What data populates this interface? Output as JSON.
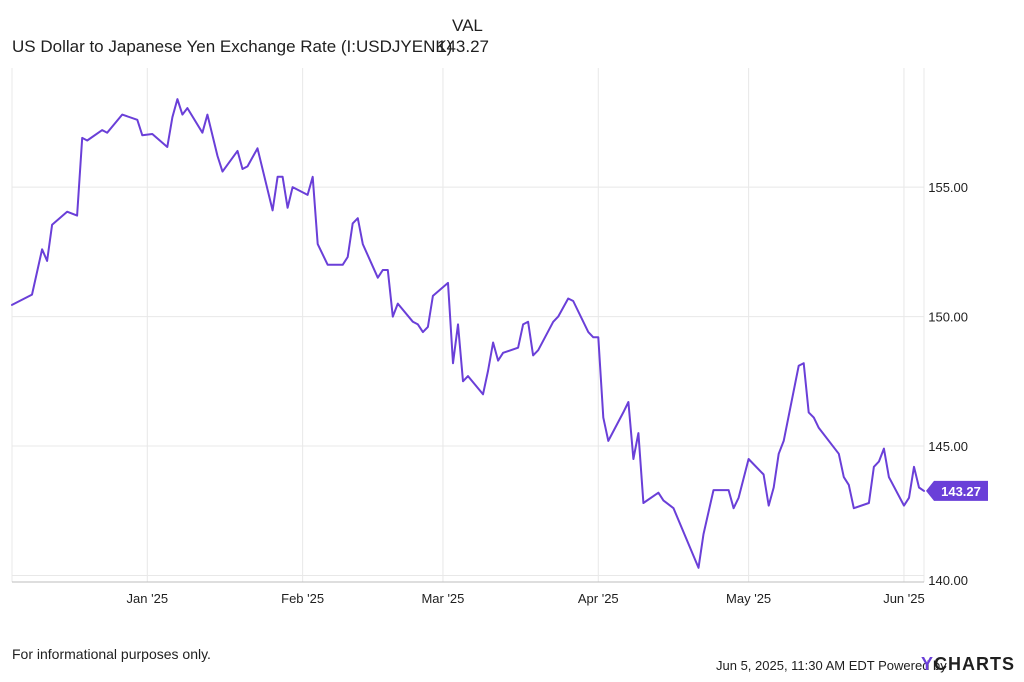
{
  "legend": {
    "column_header": "VAL",
    "series_name": "US Dollar to Japanese Yen Exchange Rate (I:USDJYENK)",
    "series_value": "143.27"
  },
  "footer": {
    "disclaimer": "For informational purposes only.",
    "timestamp": "Jun 5, 2025, 11:30 AM EDT Powered by",
    "brand_y": "Y",
    "brand_rest": "CHARTS"
  },
  "colors": {
    "line": "#6a3fd8",
    "grid": "#e8e8e8",
    "axis": "#bdbdbd",
    "text": "#1f1f1f"
  },
  "chart_data": {
    "type": "line",
    "title": "",
    "xlabel": "",
    "ylabel": "",
    "ylim": [
      139.75,
      159.6
    ],
    "xlim": [
      "2024-12-05",
      "2025-06-05"
    ],
    "x_ticks": [
      {
        "date": "2025-01-01",
        "label": "Jan '25"
      },
      {
        "date": "2025-02-01",
        "label": "Feb '25"
      },
      {
        "date": "2025-03-01",
        "label": "Mar '25"
      },
      {
        "date": "2025-04-01",
        "label": "Apr '25"
      },
      {
        "date": "2025-05-01",
        "label": "May '25"
      },
      {
        "date": "2025-06-01",
        "label": "Jun '25"
      }
    ],
    "y_ticks": [
      {
        "value": 140,
        "label": "140.00"
      },
      {
        "value": 145,
        "label": "145.00"
      },
      {
        "value": 150,
        "label": "150.00"
      },
      {
        "value": 155,
        "label": "155.00"
      }
    ],
    "end_label": "143.27",
    "grid": true,
    "series": [
      {
        "name": "US Dollar to Japanese Yen Exchange Rate (I:USDJYENK)",
        "points": [
          [
            "2024-12-05",
            150.45
          ],
          [
            "2024-12-09",
            150.85
          ],
          [
            "2024-12-11",
            152.6
          ],
          [
            "2024-12-12",
            152.15
          ],
          [
            "2024-12-13",
            153.55
          ],
          [
            "2024-12-16",
            154.05
          ],
          [
            "2024-12-18",
            153.9
          ],
          [
            "2024-12-19",
            156.9
          ],
          [
            "2024-12-20",
            156.8
          ],
          [
            "2024-12-23",
            157.2
          ],
          [
            "2024-12-24",
            157.1
          ],
          [
            "2024-12-27",
            157.8
          ],
          [
            "2024-12-30",
            157.6
          ],
          [
            "2024-12-31",
            157.0
          ],
          [
            "2025-01-02",
            157.05
          ],
          [
            "2025-01-05",
            156.55
          ],
          [
            "2025-01-06",
            157.7
          ],
          [
            "2025-01-07",
            158.4
          ],
          [
            "2025-01-08",
            157.8
          ],
          [
            "2025-01-09",
            158.05
          ],
          [
            "2025-01-12",
            157.1
          ],
          [
            "2025-01-13",
            157.8
          ],
          [
            "2025-01-15",
            156.2
          ],
          [
            "2025-01-16",
            155.6
          ],
          [
            "2025-01-19",
            156.4
          ],
          [
            "2025-01-20",
            155.7
          ],
          [
            "2025-01-21",
            155.8
          ],
          [
            "2025-01-23",
            156.5
          ],
          [
            "2025-01-26",
            154.1
          ],
          [
            "2025-01-27",
            155.4
          ],
          [
            "2025-01-28",
            155.4
          ],
          [
            "2025-01-29",
            154.2
          ],
          [
            "2025-01-30",
            155.0
          ],
          [
            "2025-02-02",
            154.7
          ],
          [
            "2025-02-03",
            155.4
          ],
          [
            "2025-02-04",
            152.8
          ],
          [
            "2025-02-06",
            152.0
          ],
          [
            "2025-02-09",
            152.0
          ],
          [
            "2025-02-10",
            152.3
          ],
          [
            "2025-02-11",
            153.6
          ],
          [
            "2025-02-12",
            153.8
          ],
          [
            "2025-02-13",
            152.8
          ],
          [
            "2025-02-16",
            151.5
          ],
          [
            "2025-02-17",
            151.8
          ],
          [
            "2025-02-18",
            151.8
          ],
          [
            "2025-02-19",
            150.0
          ],
          [
            "2025-02-20",
            150.5
          ],
          [
            "2025-02-23",
            149.8
          ],
          [
            "2025-02-24",
            149.7
          ],
          [
            "2025-02-25",
            149.4
          ],
          [
            "2025-02-26",
            149.6
          ],
          [
            "2025-02-27",
            150.8
          ],
          [
            "2025-03-02",
            151.3
          ],
          [
            "2025-03-03",
            148.2
          ],
          [
            "2025-03-04",
            149.7
          ],
          [
            "2025-03-05",
            147.5
          ],
          [
            "2025-03-06",
            147.7
          ],
          [
            "2025-03-09",
            147.0
          ],
          [
            "2025-03-10",
            147.9
          ],
          [
            "2025-03-11",
            149.0
          ],
          [
            "2025-03-12",
            148.3
          ],
          [
            "2025-03-13",
            148.6
          ],
          [
            "2025-03-16",
            148.8
          ],
          [
            "2025-03-17",
            149.7
          ],
          [
            "2025-03-18",
            149.8
          ],
          [
            "2025-03-19",
            148.5
          ],
          [
            "2025-03-20",
            148.7
          ],
          [
            "2025-03-23",
            149.8
          ],
          [
            "2025-03-24",
            150.0
          ],
          [
            "2025-03-26",
            150.7
          ],
          [
            "2025-03-27",
            150.6
          ],
          [
            "2025-03-30",
            149.4
          ],
          [
            "2025-03-31",
            149.2
          ],
          [
            "2025-04-01",
            149.2
          ],
          [
            "2025-04-02",
            146.1
          ],
          [
            "2025-04-03",
            145.2
          ],
          [
            "2025-04-06",
            146.3
          ],
          [
            "2025-04-07",
            146.7
          ],
          [
            "2025-04-08",
            144.5
          ],
          [
            "2025-04-09",
            145.5
          ],
          [
            "2025-04-10",
            142.8
          ],
          [
            "2025-04-13",
            143.2
          ],
          [
            "2025-04-14",
            142.9
          ],
          [
            "2025-04-16",
            142.6
          ],
          [
            "2025-04-21",
            140.3
          ],
          [
            "2025-04-22",
            141.6
          ],
          [
            "2025-04-24",
            143.3
          ],
          [
            "2025-04-27",
            143.3
          ],
          [
            "2025-04-28",
            142.6
          ],
          [
            "2025-04-29",
            143.0
          ],
          [
            "2025-05-01",
            144.5
          ],
          [
            "2025-05-04",
            143.9
          ],
          [
            "2025-05-05",
            142.7
          ],
          [
            "2025-05-06",
            143.4
          ],
          [
            "2025-05-07",
            144.7
          ],
          [
            "2025-05-08",
            145.2
          ],
          [
            "2025-05-11",
            148.1
          ],
          [
            "2025-05-12",
            148.2
          ],
          [
            "2025-05-13",
            146.3
          ],
          [
            "2025-05-14",
            146.1
          ],
          [
            "2025-05-15",
            145.7
          ],
          [
            "2025-05-19",
            144.7
          ],
          [
            "2025-05-20",
            143.8
          ],
          [
            "2025-05-21",
            143.5
          ],
          [
            "2025-05-22",
            142.6
          ],
          [
            "2025-05-25",
            142.8
          ],
          [
            "2025-05-26",
            144.2
          ],
          [
            "2025-05-27",
            144.4
          ],
          [
            "2025-05-28",
            144.9
          ],
          [
            "2025-05-29",
            143.8
          ],
          [
            "2025-06-01",
            142.7
          ],
          [
            "2025-06-02",
            143.0
          ],
          [
            "2025-06-03",
            144.2
          ],
          [
            "2025-06-04",
            143.4
          ],
          [
            "2025-06-05",
            143.27
          ]
        ]
      }
    ]
  }
}
